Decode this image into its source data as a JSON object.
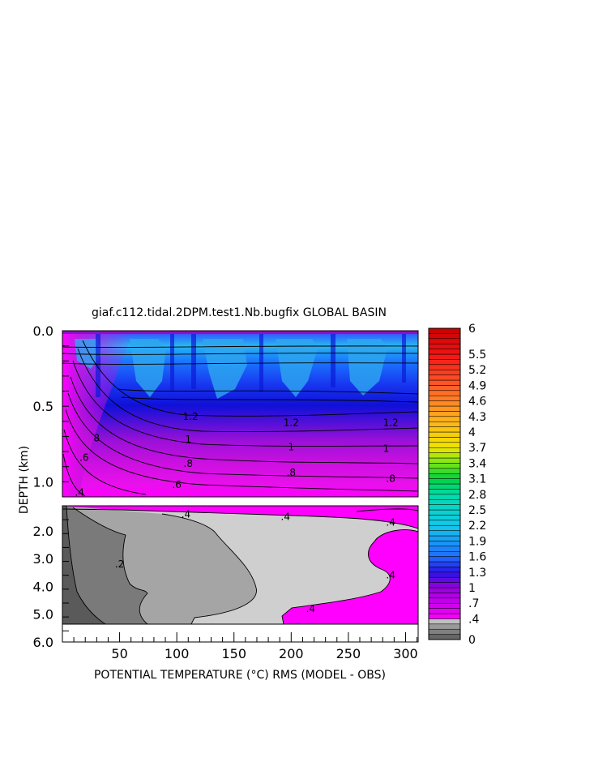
{
  "chart_data": {
    "type": "heatmap",
    "title": "giaf.c112.tidal.2DPM.test1.Nb.bugfix GLOBAL BASIN",
    "xlabel": "POTENTIAL TEMPERATURE (°C) RMS (MODEL - OBS)",
    "ylabel": "DEPTH (km)",
    "xlim": [
      0,
      311
    ],
    "x_ticks": [
      "50",
      "100",
      "150",
      "200",
      "250",
      "300"
    ],
    "upper_panel": {
      "ylim_km": [
        0.0,
        1.1
      ],
      "y_ticks": [
        "0.0",
        "0.5",
        "1.0"
      ],
      "contour_labels": [
        {
          "text": "1.2",
          "x": 112,
          "depth": 0.57
        },
        {
          "text": "1.2",
          "x": 200,
          "depth": 0.61
        },
        {
          "text": "1.2",
          "x": 287,
          "depth": 0.61
        },
        {
          "text": "1",
          "x": 110,
          "depth": 0.72
        },
        {
          "text": "1",
          "x": 200,
          "depth": 0.77
        },
        {
          "text": "1",
          "x": 283,
          "depth": 0.78
        },
        {
          "text": "8",
          "x": 30,
          "depth": 0.71
        },
        {
          "text": ".8",
          "x": 110,
          "depth": 0.88
        },
        {
          "text": ".8",
          "x": 200,
          "depth": 0.94
        },
        {
          "text": ".8",
          "x": 287,
          "depth": 0.98
        },
        {
          "text": ".6",
          "x": 19,
          "depth": 0.84
        },
        {
          "text": ".6",
          "x": 100,
          "depth": 1.02
        },
        {
          "text": ".4",
          "x": 15,
          "depth": 1.07
        }
      ]
    },
    "lower_panel": {
      "ylim_km": [
        1.1,
        6.0
      ],
      "y_ticks": [
        "2.0",
        "3.0",
        "4.0",
        "5.0",
        "6.0"
      ],
      "contour_labels": [
        {
          "text": ".4",
          "x": 108,
          "depth": 1.4
        },
        {
          "text": ".4",
          "x": 195,
          "depth": 1.5
        },
        {
          "text": ".4",
          "x": 287,
          "depth": 1.7
        },
        {
          "text": ".4",
          "x": 287,
          "depth": 3.6
        },
        {
          "text": ".4",
          "x": 217,
          "depth": 4.8
        },
        {
          "text": ".2",
          "x": 50,
          "depth": 3.2
        }
      ]
    },
    "colorbar": {
      "labels": [
        "6",
        "5.5",
        "5.2",
        "4.9",
        "4.6",
        "4.3",
        "4",
        "3.7",
        "3.4",
        "3.1",
        "2.8",
        "2.5",
        "2.2",
        "1.9",
        "1.6",
        "1.3",
        "1",
        ".7",
        ".4",
        "0"
      ],
      "levels": [
        0,
        0.1,
        0.2,
        0.3,
        0.4,
        0.5,
        0.6,
        0.7,
        0.8,
        0.9,
        1.0,
        1.1,
        1.2,
        1.3,
        1.4,
        1.5,
        1.6,
        1.7,
        1.8,
        1.9,
        2.0,
        2.1,
        2.2,
        2.3,
        2.4,
        2.5,
        2.6,
        2.7,
        2.8,
        2.9,
        3.0,
        3.1,
        3.2,
        3.3,
        3.4,
        3.5,
        3.6,
        3.7,
        3.8,
        3.9,
        4.0,
        4.1,
        4.2,
        4.3,
        4.4,
        4.5,
        4.6,
        4.7,
        4.8,
        4.9,
        5.0,
        5.1,
        5.2,
        5.3,
        5.4,
        5.5,
        5.6,
        5.7,
        5.8,
        5.9,
        6.0
      ]
    }
  }
}
